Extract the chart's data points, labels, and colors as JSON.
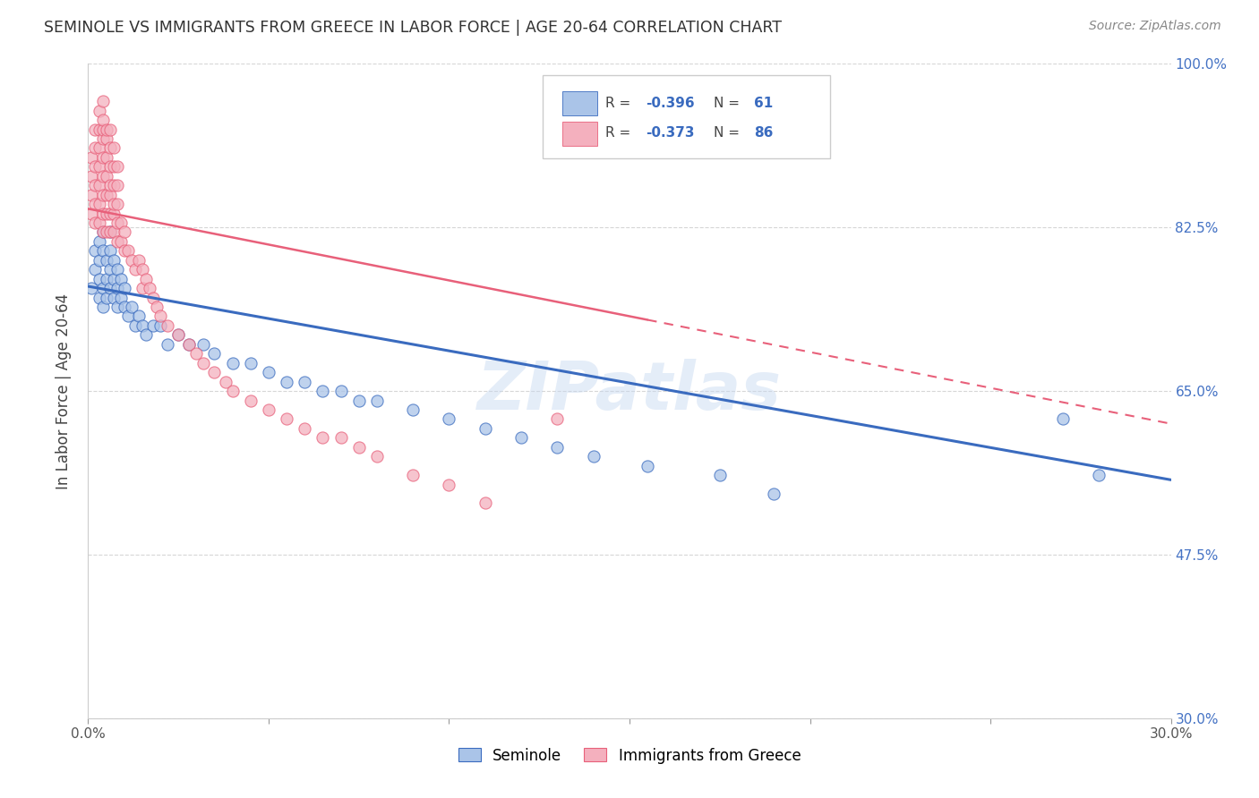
{
  "title": "SEMINOLE VS IMMIGRANTS FROM GREECE IN LABOR FORCE | AGE 20-64 CORRELATION CHART",
  "source": "Source: ZipAtlas.com",
  "ylabel": "In Labor Force | Age 20-64",
  "xmin": 0.0,
  "xmax": 0.3,
  "ymin": 0.3,
  "ymax": 1.0,
  "yticks": [
    0.3,
    0.475,
    0.65,
    0.825,
    1.0
  ],
  "ytick_labels": [
    "30.0%",
    "47.5%",
    "65.0%",
    "82.5%",
    "100.0%"
  ],
  "xticks": [
    0.0,
    0.05,
    0.1,
    0.15,
    0.2,
    0.25,
    0.3
  ],
  "xtick_labels": [
    "0.0%",
    "",
    "",
    "",
    "",
    "",
    "30.0%"
  ],
  "blue_color": "#aac4e8",
  "pink_color": "#f4b0be",
  "blue_line_color": "#3a6bbf",
  "pink_line_color": "#e8607a",
  "watermark": "ZIPatlas",
  "legend_label_blue": "Seminole",
  "legend_label_pink": "Immigrants from Greece",
  "blue_trend_x0": 0.0,
  "blue_trend_y0": 0.762,
  "blue_trend_x1": 0.3,
  "blue_trend_y1": 0.555,
  "pink_trend_x0": 0.0,
  "pink_trend_y0": 0.845,
  "pink_trend_x1": 0.3,
  "pink_trend_y1": 0.615,
  "blue_scatter_x": [
    0.001,
    0.002,
    0.002,
    0.003,
    0.003,
    0.003,
    0.003,
    0.004,
    0.004,
    0.004,
    0.004,
    0.005,
    0.005,
    0.005,
    0.006,
    0.006,
    0.006,
    0.006,
    0.007,
    0.007,
    0.007,
    0.008,
    0.008,
    0.008,
    0.009,
    0.009,
    0.01,
    0.01,
    0.011,
    0.012,
    0.013,
    0.014,
    0.015,
    0.016,
    0.018,
    0.02,
    0.022,
    0.025,
    0.028,
    0.032,
    0.035,
    0.04,
    0.045,
    0.05,
    0.055,
    0.06,
    0.065,
    0.07,
    0.075,
    0.08,
    0.09,
    0.1,
    0.11,
    0.12,
    0.13,
    0.14,
    0.155,
    0.175,
    0.19,
    0.27,
    0.28
  ],
  "blue_scatter_y": [
    0.76,
    0.78,
    0.8,
    0.75,
    0.79,
    0.81,
    0.77,
    0.76,
    0.8,
    0.82,
    0.74,
    0.79,
    0.77,
    0.75,
    0.82,
    0.8,
    0.78,
    0.76,
    0.79,
    0.77,
    0.75,
    0.78,
    0.76,
    0.74,
    0.77,
    0.75,
    0.76,
    0.74,
    0.73,
    0.74,
    0.72,
    0.73,
    0.72,
    0.71,
    0.72,
    0.72,
    0.7,
    0.71,
    0.7,
    0.7,
    0.69,
    0.68,
    0.68,
    0.67,
    0.66,
    0.66,
    0.65,
    0.65,
    0.64,
    0.64,
    0.63,
    0.62,
    0.61,
    0.6,
    0.59,
    0.58,
    0.57,
    0.56,
    0.54,
    0.62,
    0.56
  ],
  "pink_scatter_x": [
    0.001,
    0.001,
    0.001,
    0.001,
    0.002,
    0.002,
    0.002,
    0.002,
    0.002,
    0.002,
    0.003,
    0.003,
    0.003,
    0.003,
    0.003,
    0.003,
    0.003,
    0.004,
    0.004,
    0.004,
    0.004,
    0.004,
    0.004,
    0.004,
    0.004,
    0.004,
    0.005,
    0.005,
    0.005,
    0.005,
    0.005,
    0.005,
    0.005,
    0.006,
    0.006,
    0.006,
    0.006,
    0.006,
    0.006,
    0.006,
    0.007,
    0.007,
    0.007,
    0.007,
    0.007,
    0.007,
    0.008,
    0.008,
    0.008,
    0.008,
    0.008,
    0.009,
    0.009,
    0.01,
    0.01,
    0.011,
    0.012,
    0.013,
    0.014,
    0.015,
    0.015,
    0.016,
    0.017,
    0.018,
    0.019,
    0.02,
    0.022,
    0.025,
    0.028,
    0.03,
    0.032,
    0.035,
    0.038,
    0.04,
    0.045,
    0.05,
    0.055,
    0.06,
    0.065,
    0.07,
    0.075,
    0.08,
    0.09,
    0.1,
    0.11,
    0.13
  ],
  "pink_scatter_y": [
    0.84,
    0.86,
    0.88,
    0.9,
    0.83,
    0.85,
    0.87,
    0.89,
    0.91,
    0.93,
    0.83,
    0.85,
    0.87,
    0.89,
    0.91,
    0.93,
    0.95,
    0.82,
    0.84,
    0.86,
    0.88,
    0.9,
    0.92,
    0.93,
    0.94,
    0.96,
    0.82,
    0.84,
    0.86,
    0.88,
    0.9,
    0.92,
    0.93,
    0.82,
    0.84,
    0.86,
    0.87,
    0.89,
    0.91,
    0.93,
    0.82,
    0.84,
    0.85,
    0.87,
    0.89,
    0.91,
    0.81,
    0.83,
    0.85,
    0.87,
    0.89,
    0.81,
    0.83,
    0.8,
    0.82,
    0.8,
    0.79,
    0.78,
    0.79,
    0.78,
    0.76,
    0.77,
    0.76,
    0.75,
    0.74,
    0.73,
    0.72,
    0.71,
    0.7,
    0.69,
    0.68,
    0.67,
    0.66,
    0.65,
    0.64,
    0.63,
    0.62,
    0.61,
    0.6,
    0.6,
    0.59,
    0.58,
    0.56,
    0.55,
    0.53,
    0.62
  ]
}
